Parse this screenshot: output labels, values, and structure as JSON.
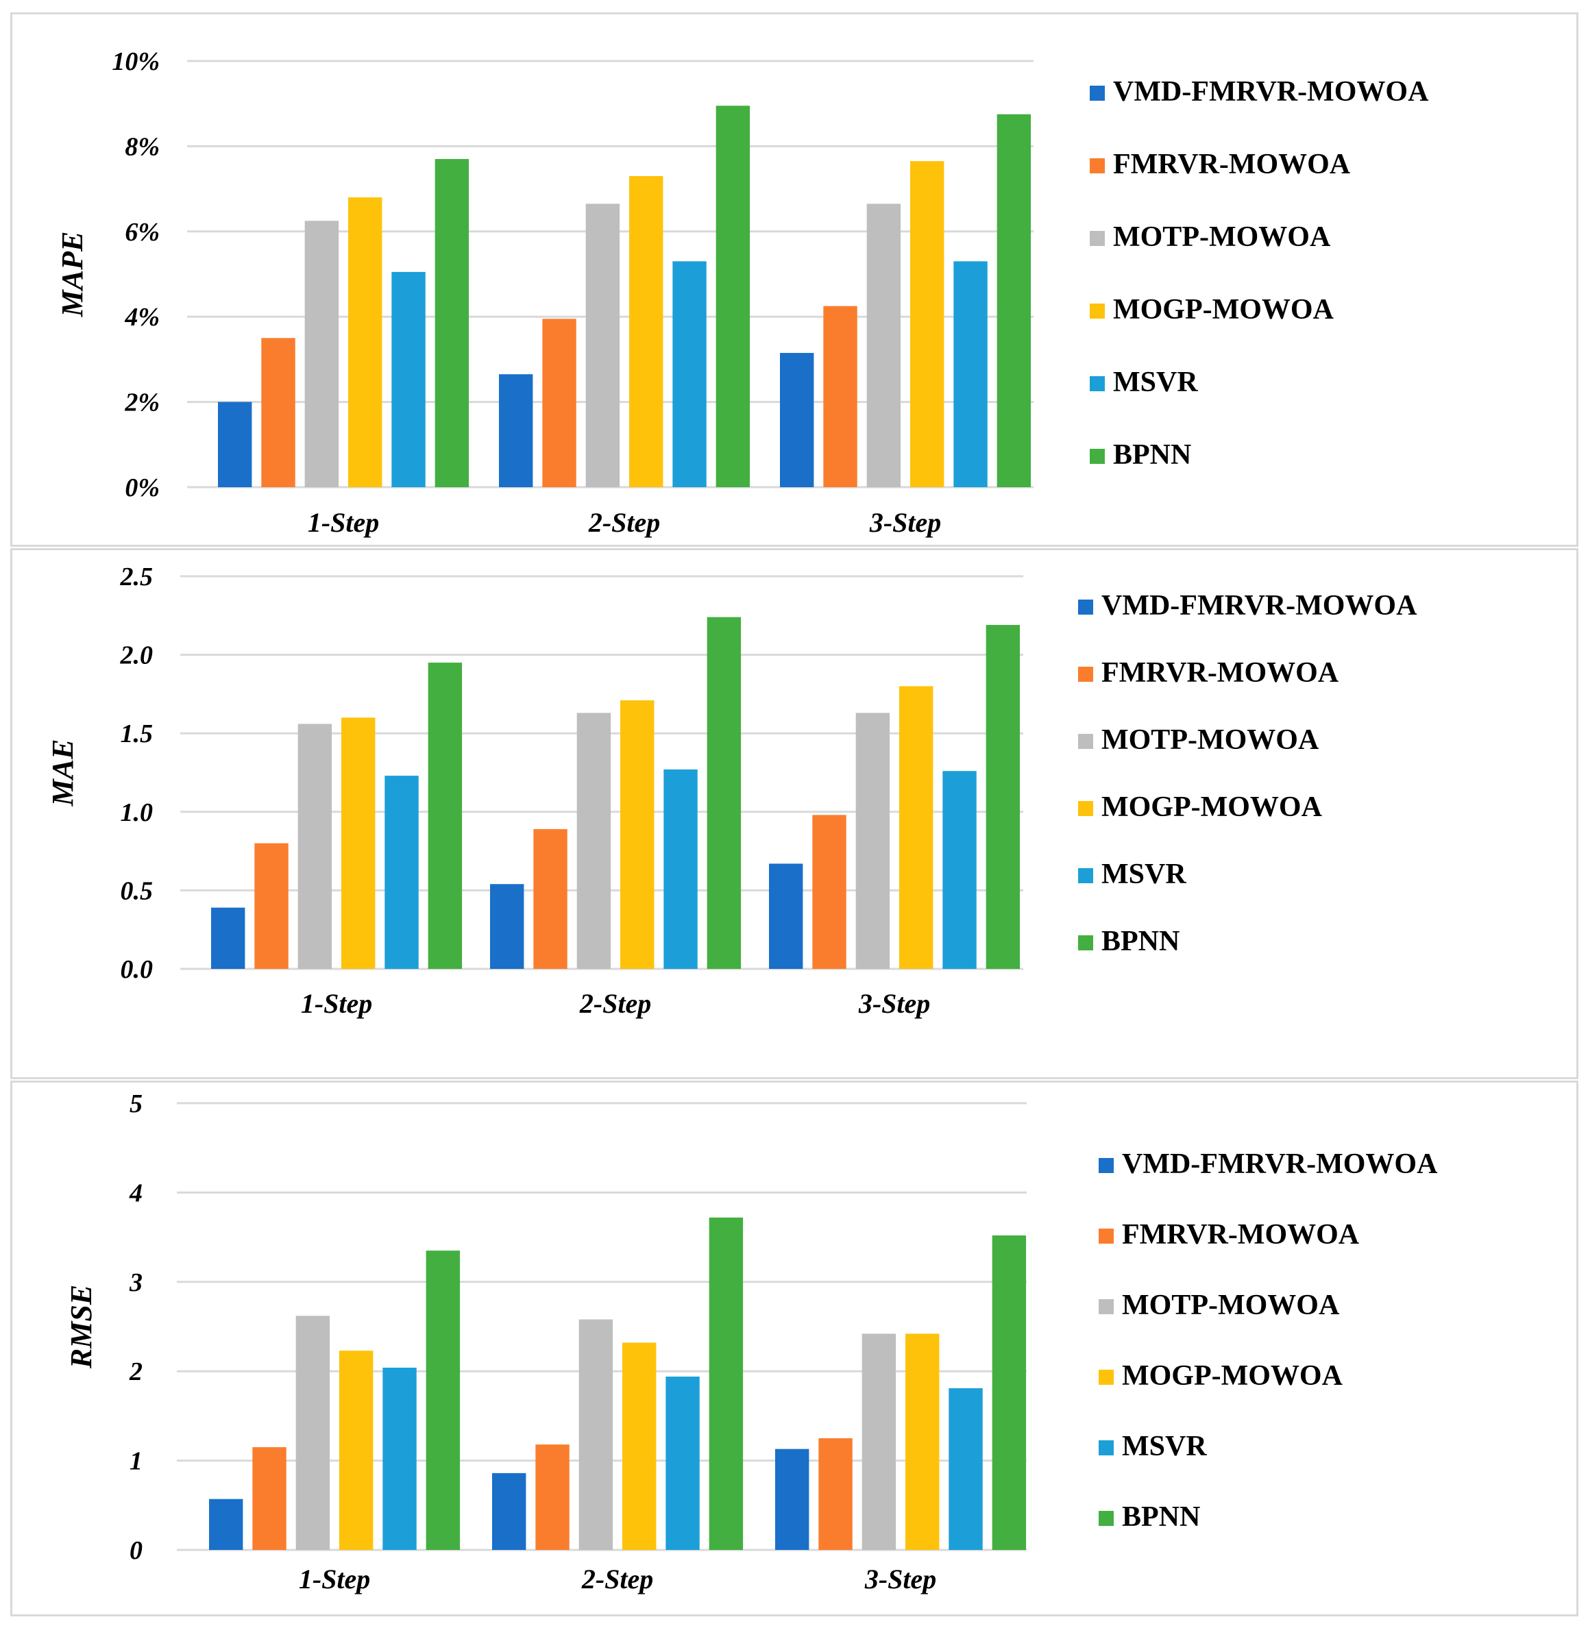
{
  "series_colors": [
    "#1a6fc9",
    "#fa7d2e",
    "#bebebe",
    "#fec20b",
    "#1c9fd8",
    "#43af40"
  ],
  "chart_data": [
    {
      "type": "bar",
      "ylabel": "MAPE",
      "categories": [
        "1-Step",
        "2-Step",
        "3-Step"
      ],
      "ylim": [
        0,
        10
      ],
      "yticks": [
        "0%",
        "2%",
        "4%",
        "6%",
        "8%",
        "10%"
      ],
      "legend_position": "right",
      "grid": true,
      "series": [
        {
          "name": "VMD-FMRVR-MOWOA",
          "values": [
            2.0,
            2.65,
            3.15
          ]
        },
        {
          "name": "FMRVR-MOWOA",
          "values": [
            3.5,
            3.95,
            4.25
          ]
        },
        {
          "name": "MOTP-MOWOA",
          "values": [
            6.25,
            6.65,
            6.65
          ]
        },
        {
          "name": "MOGP-MOWOA",
          "values": [
            6.8,
            7.3,
            7.65
          ]
        },
        {
          "name": "MSVR",
          "values": [
            5.05,
            5.3,
            5.3
          ]
        },
        {
          "name": "BPNN",
          "values": [
            7.7,
            8.95,
            8.75
          ]
        }
      ]
    },
    {
      "type": "bar",
      "ylabel": "MAE",
      "categories": [
        "1-Step",
        "2-Step",
        "3-Step"
      ],
      "ylim": [
        0,
        2.5
      ],
      "yticks": [
        "0.0",
        "0.5",
        "1.0",
        "1.5",
        "2.0",
        "2.5"
      ],
      "legend_position": "right",
      "grid": true,
      "series": [
        {
          "name": "VMD-FMRVR-MOWOA",
          "values": [
            0.39,
            0.54,
            0.67
          ]
        },
        {
          "name": "FMRVR-MOWOA",
          "values": [
            0.8,
            0.89,
            0.98
          ]
        },
        {
          "name": "MOTP-MOWOA",
          "values": [
            1.56,
            1.63,
            1.63
          ]
        },
        {
          "name": "MOGP-MOWOA",
          "values": [
            1.6,
            1.71,
            1.8
          ]
        },
        {
          "name": "MSVR",
          "values": [
            1.23,
            1.27,
            1.26
          ]
        },
        {
          "name": "BPNN",
          "values": [
            1.95,
            2.24,
            2.19
          ]
        }
      ]
    },
    {
      "type": "bar",
      "ylabel": "RMSE",
      "categories": [
        "1-Step",
        "2-Step",
        "3-Step"
      ],
      "ylim": [
        0,
        5
      ],
      "yticks": [
        "0",
        "1",
        "2",
        "3",
        "4",
        "5"
      ],
      "legend_position": "right",
      "grid": true,
      "series": [
        {
          "name": "VMD-FMRVR-MOWOA",
          "values": [
            0.57,
            0.86,
            1.13
          ]
        },
        {
          "name": "FMRVR-MOWOA",
          "values": [
            1.15,
            1.18,
            1.25
          ]
        },
        {
          "name": "MOTP-MOWOA",
          "values": [
            2.62,
            2.58,
            2.42
          ]
        },
        {
          "name": "MOGP-MOWOA",
          "values": [
            2.23,
            2.32,
            2.42
          ]
        },
        {
          "name": "MSVR",
          "values": [
            2.04,
            1.94,
            1.81
          ]
        },
        {
          "name": "BPNN",
          "values": [
            3.35,
            3.72,
            3.52
          ]
        }
      ]
    }
  ]
}
